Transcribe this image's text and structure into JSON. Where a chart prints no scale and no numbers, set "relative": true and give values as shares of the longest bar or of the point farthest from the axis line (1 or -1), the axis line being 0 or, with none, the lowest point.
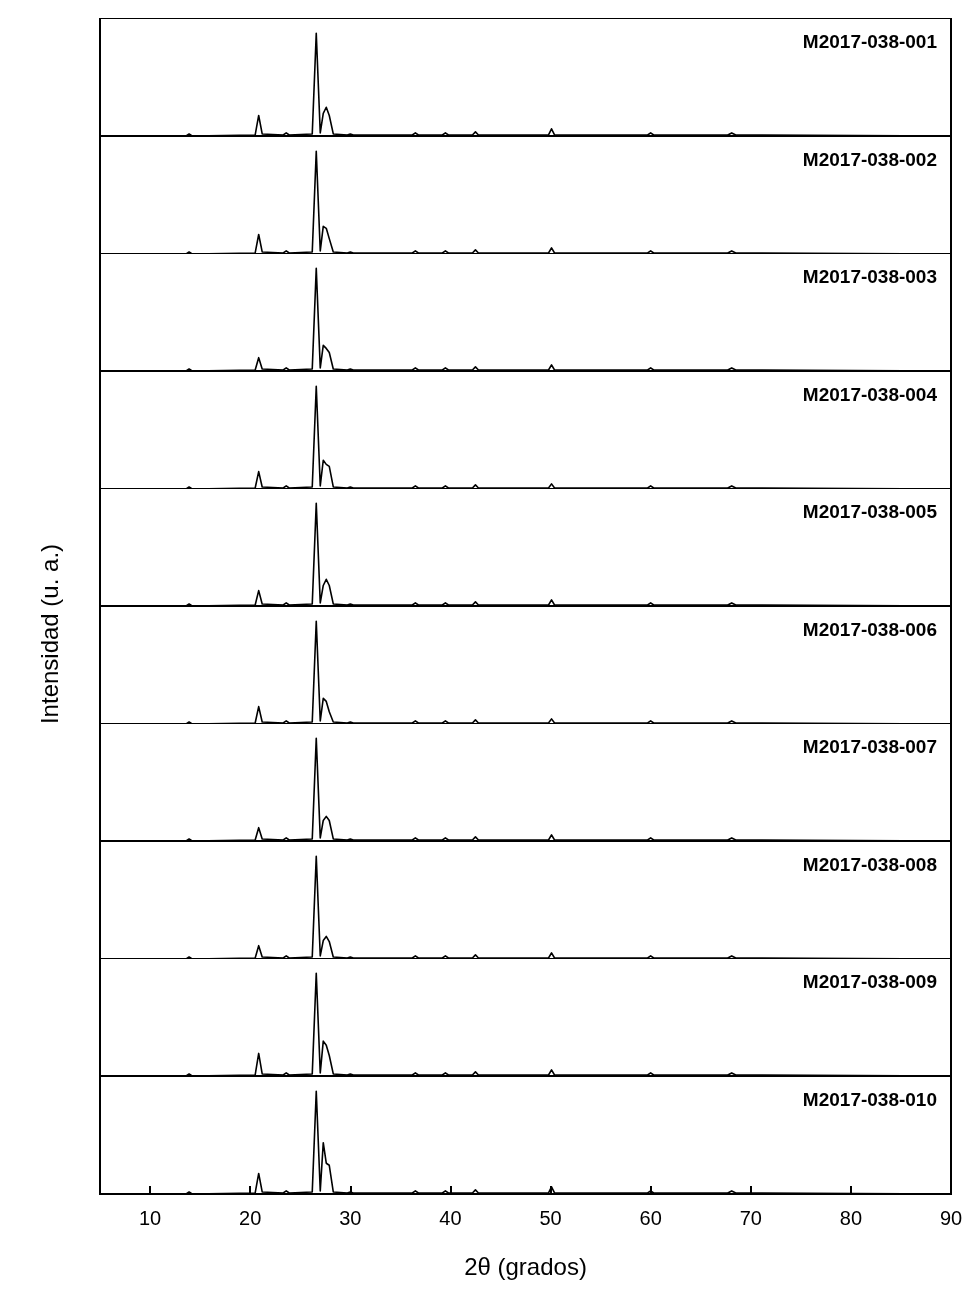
{
  "chart_data": [
    {
      "type": "line",
      "relative": true,
      "annotations": [
        "M2017-038-001"
      ],
      "tick_labels": false,
      "xlim": [
        5,
        90
      ],
      "xticks": [
        10,
        20,
        30,
        40,
        50,
        60,
        70,
        80,
        90
      ],
      "x": [
        5,
        13.6,
        13.9,
        14.2,
        20.5,
        20.85,
        21.2,
        23.3,
        23.6,
        23.9,
        26.2,
        26.6,
        27.0,
        27.3,
        27.6,
        27.9,
        28.3,
        29.7,
        30,
        30.3,
        36.2,
        36.5,
        36.8,
        39.2,
        39.5,
        39.8,
        42.2,
        42.5,
        42.8,
        49.8,
        50.1,
        50.4,
        59.7,
        60,
        60.3,
        67.7,
        68.1,
        68.5,
        90
      ],
      "series": [
        {
          "color": "#000000",
          "values": [
            0,
            0,
            0.02,
            0,
            0.01,
            0.2,
            0.02,
            0.01,
            0.03,
            0.01,
            0.02,
            1,
            0.03,
            0.22,
            0.28,
            0.2,
            0.02,
            0.01,
            0.02,
            0.01,
            0.01,
            0.03,
            0.01,
            0.01,
            0.03,
            0.01,
            0.01,
            0.04,
            0.01,
            0.01,
            0.07,
            0.01,
            0.01,
            0.03,
            0.01,
            0.01,
            0.03,
            0.01,
            0
          ]
        }
      ]
    },
    {
      "type": "line",
      "relative": true,
      "annotations": [
        "M2017-038-002"
      ],
      "tick_labels": false,
      "xlim": [
        5,
        90
      ],
      "xticks": [
        10,
        20,
        30,
        40,
        50,
        60,
        70,
        80,
        90
      ],
      "x": [
        5,
        13.6,
        13.9,
        14.2,
        20.5,
        20.85,
        21.2,
        23.3,
        23.6,
        23.9,
        26.2,
        26.6,
        27.0,
        27.3,
        27.6,
        27.9,
        28.3,
        29.7,
        30,
        30.3,
        36.2,
        36.5,
        36.8,
        39.2,
        39.5,
        39.8,
        42.2,
        42.5,
        42.8,
        49.8,
        50.1,
        50.4,
        59.7,
        60,
        60.3,
        67.7,
        68.1,
        68.5,
        90
      ],
      "series": [
        {
          "color": "#000000",
          "values": [
            0,
            0,
            0.02,
            0,
            0.01,
            0.19,
            0.02,
            0.01,
            0.03,
            0.01,
            0.02,
            1,
            0.03,
            0.27,
            0.25,
            0.15,
            0.02,
            0.01,
            0.02,
            0.01,
            0.01,
            0.03,
            0.01,
            0.01,
            0.03,
            0.01,
            0.01,
            0.04,
            0.01,
            0.01,
            0.06,
            0.01,
            0.01,
            0.03,
            0.01,
            0.01,
            0.03,
            0.01,
            0
          ]
        }
      ]
    },
    {
      "type": "line",
      "relative": true,
      "annotations": [
        "M2017-038-003"
      ],
      "tick_labels": false,
      "xlim": [
        5,
        90
      ],
      "xticks": [
        10,
        20,
        30,
        40,
        50,
        60,
        70,
        80,
        90
      ],
      "x": [
        5,
        13.6,
        13.9,
        14.2,
        20.5,
        20.85,
        21.2,
        23.3,
        23.6,
        23.9,
        26.2,
        26.6,
        27.0,
        27.3,
        27.6,
        27.9,
        28.3,
        29.7,
        30,
        30.3,
        36.2,
        36.5,
        36.8,
        39.2,
        39.5,
        39.8,
        42.2,
        42.5,
        42.8,
        49.8,
        50.1,
        50.4,
        59.7,
        60,
        60.3,
        67.7,
        68.1,
        68.5,
        90
      ],
      "series": [
        {
          "color": "#000000",
          "values": [
            0,
            0,
            0.02,
            0,
            0.01,
            0.13,
            0.02,
            0.01,
            0.03,
            0.01,
            0.02,
            1,
            0.03,
            0.25,
            0.22,
            0.18,
            0.02,
            0.01,
            0.02,
            0.01,
            0.01,
            0.03,
            0.01,
            0.01,
            0.03,
            0.01,
            0.01,
            0.04,
            0.01,
            0.01,
            0.06,
            0.01,
            0.01,
            0.03,
            0.01,
            0.01,
            0.03,
            0.01,
            0
          ]
        }
      ]
    },
    {
      "type": "line",
      "relative": true,
      "annotations": [
        "M2017-038-004"
      ],
      "tick_labels": false,
      "xlim": [
        5,
        90
      ],
      "xticks": [
        10,
        20,
        30,
        40,
        50,
        60,
        70,
        80,
        90
      ],
      "x": [
        5,
        13.6,
        13.9,
        14.2,
        20.5,
        20.85,
        21.2,
        23.3,
        23.6,
        23.9,
        26.2,
        26.6,
        27.0,
        27.3,
        27.6,
        27.9,
        28.3,
        29.7,
        30,
        30.3,
        36.2,
        36.5,
        36.8,
        39.2,
        39.5,
        39.8,
        42.2,
        42.5,
        42.8,
        49.8,
        50.1,
        50.4,
        59.7,
        60,
        60.3,
        67.7,
        68.1,
        68.5,
        90
      ],
      "series": [
        {
          "color": "#000000",
          "values": [
            0,
            0,
            0.02,
            0,
            0.01,
            0.17,
            0.02,
            0.01,
            0.03,
            0.01,
            0.02,
            1,
            0.03,
            0.28,
            0.24,
            0.22,
            0.02,
            0.01,
            0.02,
            0.01,
            0.01,
            0.03,
            0.01,
            0.01,
            0.03,
            0.01,
            0.01,
            0.04,
            0.01,
            0.01,
            0.05,
            0.01,
            0.01,
            0.03,
            0.01,
            0.01,
            0.03,
            0.01,
            0
          ]
        }
      ]
    },
    {
      "type": "line",
      "relative": true,
      "annotations": [
        "M2017-038-005"
      ],
      "tick_labels": false,
      "xlim": [
        5,
        90
      ],
      "xticks": [
        10,
        20,
        30,
        40,
        50,
        60,
        70,
        80,
        90
      ],
      "x": [
        5,
        13.6,
        13.9,
        14.2,
        20.5,
        20.85,
        21.2,
        23.3,
        23.6,
        23.9,
        26.2,
        26.6,
        27.0,
        27.3,
        27.6,
        27.9,
        28.3,
        29.7,
        30,
        30.3,
        36.2,
        36.5,
        36.8,
        39.2,
        39.5,
        39.8,
        42.2,
        42.5,
        42.8,
        49.8,
        50.1,
        50.4,
        59.7,
        60,
        60.3,
        67.7,
        68.1,
        68.5,
        90
      ],
      "series": [
        {
          "color": "#000000",
          "values": [
            0,
            0,
            0.02,
            0,
            0.01,
            0.15,
            0.02,
            0.01,
            0.03,
            0.01,
            0.02,
            1,
            0.03,
            0.2,
            0.26,
            0.2,
            0.02,
            0.01,
            0.02,
            0.01,
            0.01,
            0.03,
            0.01,
            0.01,
            0.03,
            0.01,
            0.01,
            0.04,
            0.01,
            0.01,
            0.06,
            0.01,
            0.01,
            0.03,
            0.01,
            0.01,
            0.03,
            0.01,
            0
          ]
        }
      ]
    },
    {
      "type": "line",
      "relative": true,
      "ylabel": "Intensidad (u. a.)",
      "annotations": [
        "M2017-038-006"
      ],
      "tick_labels": false,
      "xlim": [
        5,
        90
      ],
      "xticks": [
        10,
        20,
        30,
        40,
        50,
        60,
        70,
        80,
        90
      ],
      "x": [
        5,
        13.6,
        13.9,
        14.2,
        20.5,
        20.85,
        21.2,
        23.3,
        23.6,
        23.9,
        26.2,
        26.6,
        27.0,
        27.3,
        27.6,
        27.9,
        28.3,
        29.7,
        30,
        30.3,
        36.2,
        36.5,
        36.8,
        39.2,
        39.5,
        39.8,
        42.2,
        42.5,
        42.8,
        49.8,
        50.1,
        50.4,
        59.7,
        60,
        60.3,
        67.7,
        68.1,
        68.5,
        90
      ],
      "series": [
        {
          "color": "#000000",
          "values": [
            0,
            0,
            0.02,
            0,
            0.01,
            0.17,
            0.02,
            0.01,
            0.03,
            0.01,
            0.02,
            1,
            0.03,
            0.25,
            0.22,
            0.12,
            0.02,
            0.01,
            0.02,
            0.01,
            0.01,
            0.03,
            0.01,
            0.01,
            0.03,
            0.01,
            0.01,
            0.04,
            0.01,
            0.01,
            0.05,
            0.01,
            0.01,
            0.03,
            0.01,
            0.01,
            0.03,
            0.01,
            0
          ]
        }
      ]
    },
    {
      "type": "line",
      "relative": true,
      "annotations": [
        "M2017-038-007"
      ],
      "tick_labels": false,
      "xlim": [
        5,
        90
      ],
      "xticks": [
        10,
        20,
        30,
        40,
        50,
        60,
        70,
        80,
        90
      ],
      "x": [
        5,
        13.6,
        13.9,
        14.2,
        20.5,
        20.85,
        21.2,
        23.3,
        23.6,
        23.9,
        26.2,
        26.6,
        27.0,
        27.3,
        27.6,
        27.9,
        28.3,
        29.7,
        30,
        30.3,
        36.2,
        36.5,
        36.8,
        39.2,
        39.5,
        39.8,
        42.2,
        42.5,
        42.8,
        49.8,
        50.1,
        50.4,
        59.7,
        60,
        60.3,
        67.7,
        68.1,
        68.5,
        90
      ],
      "series": [
        {
          "color": "#000000",
          "values": [
            0,
            0,
            0.02,
            0,
            0.01,
            0.13,
            0.02,
            0.01,
            0.03,
            0.01,
            0.02,
            1,
            0.03,
            0.2,
            0.24,
            0.2,
            0.02,
            0.01,
            0.02,
            0.01,
            0.01,
            0.03,
            0.01,
            0.01,
            0.03,
            0.01,
            0.01,
            0.04,
            0.01,
            0.01,
            0.06,
            0.01,
            0.01,
            0.03,
            0.01,
            0.01,
            0.03,
            0.01,
            0
          ]
        }
      ]
    },
    {
      "type": "line",
      "relative": true,
      "annotations": [
        "M2017-038-008"
      ],
      "tick_labels": false,
      "xlim": [
        5,
        90
      ],
      "xticks": [
        10,
        20,
        30,
        40,
        50,
        60,
        70,
        80,
        90
      ],
      "x": [
        5,
        13.6,
        13.9,
        14.2,
        20.5,
        20.85,
        21.2,
        23.3,
        23.6,
        23.9,
        26.2,
        26.6,
        27.0,
        27.3,
        27.6,
        27.9,
        28.3,
        29.7,
        30,
        30.3,
        36.2,
        36.5,
        36.8,
        39.2,
        39.5,
        39.8,
        42.2,
        42.5,
        42.8,
        49.8,
        50.1,
        50.4,
        59.7,
        60,
        60.3,
        67.7,
        68.1,
        68.5,
        90
      ],
      "series": [
        {
          "color": "#000000",
          "values": [
            0,
            0,
            0.02,
            0,
            0.01,
            0.13,
            0.02,
            0.01,
            0.03,
            0.01,
            0.02,
            1,
            0.03,
            0.18,
            0.22,
            0.17,
            0.02,
            0.01,
            0.02,
            0.01,
            0.01,
            0.03,
            0.01,
            0.01,
            0.03,
            0.01,
            0.01,
            0.04,
            0.01,
            0.01,
            0.06,
            0.01,
            0.01,
            0.03,
            0.01,
            0.01,
            0.03,
            0.01,
            0
          ]
        }
      ]
    },
    {
      "type": "line",
      "relative": true,
      "annotations": [
        "M2017-038-009"
      ],
      "tick_labels": false,
      "xlim": [
        5,
        90
      ],
      "xticks": [
        10,
        20,
        30,
        40,
        50,
        60,
        70,
        80,
        90
      ],
      "x": [
        5,
        13.6,
        13.9,
        14.2,
        20.5,
        20.85,
        21.2,
        23.3,
        23.6,
        23.9,
        26.2,
        26.6,
        27.0,
        27.3,
        27.6,
        27.9,
        28.3,
        29.7,
        30,
        30.3,
        36.2,
        36.5,
        36.8,
        39.2,
        39.5,
        39.8,
        42.2,
        42.5,
        42.8,
        49.8,
        50.1,
        50.4,
        59.7,
        60,
        60.3,
        67.7,
        68.1,
        68.5,
        90
      ],
      "series": [
        {
          "color": "#000000",
          "values": [
            0,
            0,
            0.02,
            0,
            0.01,
            0.22,
            0.02,
            0.01,
            0.03,
            0.01,
            0.02,
            1,
            0.03,
            0.34,
            0.3,
            0.2,
            0.02,
            0.01,
            0.02,
            0.01,
            0.01,
            0.03,
            0.01,
            0.01,
            0.03,
            0.01,
            0.01,
            0.04,
            0.01,
            0.01,
            0.06,
            0.01,
            0.01,
            0.03,
            0.01,
            0.01,
            0.03,
            0.01,
            0
          ]
        }
      ]
    },
    {
      "type": "line",
      "relative": true,
      "annotations": [
        "M2017-038-010"
      ],
      "xlabel": "2θ (grados)",
      "tick_labels": "x",
      "xlim": [
        5,
        90
      ],
      "xticks": [
        10,
        20,
        30,
        40,
        50,
        60,
        70,
        80,
        90
      ],
      "x": [
        5,
        13.6,
        13.9,
        14.2,
        20.5,
        20.85,
        21.2,
        23.3,
        23.6,
        23.9,
        26.2,
        26.6,
        27.0,
        27.3,
        27.6,
        27.9,
        28.3,
        29.7,
        30,
        30.3,
        36.2,
        36.5,
        36.8,
        39.2,
        39.5,
        39.8,
        42.2,
        42.5,
        42.8,
        49.8,
        50.1,
        50.4,
        59.7,
        60,
        60.3,
        67.7,
        68.1,
        68.5,
        90
      ],
      "series": [
        {
          "color": "#000000",
          "values": [
            0,
            0,
            0.02,
            0,
            0.01,
            0.2,
            0.02,
            0.01,
            0.03,
            0.01,
            0.02,
            1,
            0.03,
            0.5,
            0.3,
            0.28,
            0.02,
            0.01,
            0.02,
            0.01,
            0.01,
            0.03,
            0.01,
            0.01,
            0.03,
            0.01,
            0.01,
            0.04,
            0.01,
            0.01,
            0.07,
            0.01,
            0.01,
            0.03,
            0.01,
            0.01,
            0.03,
            0.01,
            0
          ]
        }
      ]
    }
  ]
}
